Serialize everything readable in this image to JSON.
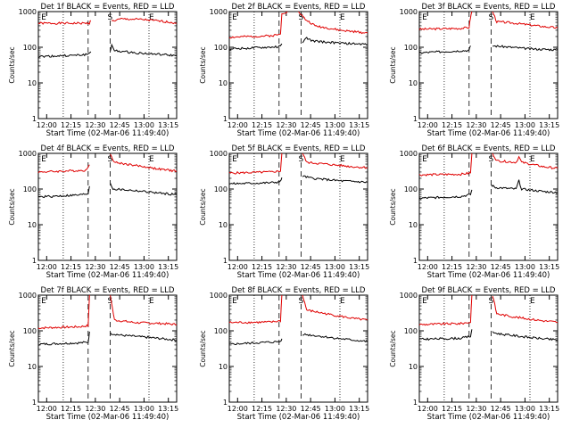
{
  "colors": {
    "events": "#000000",
    "lld": "#e00000",
    "axis": "#000000",
    "background": "#ffffff"
  },
  "chart_data": [
    {
      "type": "line",
      "title": "Det 1f BLACK = Events, RED = LLD",
      "ylabel": "Counts/sec",
      "xlabel": "Start Time (02-Mar-06 11:49:40)",
      "xticks": [
        "12:00",
        "12:15",
        "12:30",
        "12:45",
        "13:00",
        "13:15"
      ],
      "yticks": [
        "1",
        "10",
        "100",
        "1000"
      ],
      "yscale": "log",
      "ylim": [
        1,
        1000
      ],
      "markers": [
        "E",
        "S",
        "E"
      ],
      "series": [
        {
          "name": "LLD",
          "segments": [
            [
              [
                0,
                470
              ],
              [
                0.36,
                470
              ],
              [
                0.37,
                480
              ],
              [
                0.38,
                560
              ]
            ],
            [
              [
                0.53,
                540
              ],
              [
                0.6,
                620
              ],
              [
                0.75,
                600
              ],
              [
                0.92,
                520
              ],
              [
                1,
                480
              ]
            ]
          ]
        },
        {
          "name": "Events",
          "segments": [
            [
              [
                0,
                55
              ],
              [
                0.3,
                60
              ],
              [
                0.36,
                64
              ],
              [
                0.37,
                70
              ],
              [
                0.38,
                75
              ]
            ],
            [
              [
                0.52,
                82
              ],
              [
                0.53,
                110
              ],
              [
                0.55,
                80
              ],
              [
                0.7,
                70
              ],
              [
                0.9,
                62
              ],
              [
                1,
                58
              ]
            ]
          ]
        }
      ]
    },
    {
      "type": "line",
      "title": "Det 2f BLACK = Events, RED = LLD",
      "ylabel": "Counts/sec",
      "xlabel": "Start Time (02-Mar-06 11:49:40)",
      "xticks": [
        "12:00",
        "12:15",
        "12:30",
        "12:45",
        "13:00",
        "13:15"
      ],
      "yticks": [
        "1",
        "10",
        "100",
        "1000"
      ],
      "yscale": "log",
      "ylim": [
        1,
        1000
      ],
      "markers": [
        "E",
        "S",
        "E"
      ],
      "series": [
        {
          "name": "LLD",
          "segments": [
            [
              [
                0,
                190
              ],
              [
                0.3,
                210
              ],
              [
                0.37,
                230
              ],
              [
                0.38,
                900
              ],
              [
                0.42,
                1000
              ]
            ],
            [
              [
                0.5,
                1000
              ],
              [
                0.55,
                600
              ],
              [
                0.62,
                400
              ],
              [
                0.8,
                300
              ],
              [
                1,
                250
              ]
            ]
          ]
        },
        {
          "name": "Events",
          "segments": [
            [
              [
                0,
                90
              ],
              [
                0.3,
                100
              ],
              [
                0.37,
                105
              ],
              [
                0.38,
                125
              ]
            ],
            [
              [
                0.53,
                140
              ],
              [
                0.56,
                180
              ],
              [
                0.6,
                150
              ],
              [
                0.8,
                130
              ],
              [
                1,
                120
              ]
            ]
          ]
        }
      ]
    },
    {
      "type": "line",
      "title": "Det 3f BLACK = Events, RED = LLD",
      "ylabel": "Counts/sec",
      "xlabel": "Start Time (02-Mar-06 11:49:40)",
      "xticks": [
        "12:00",
        "12:15",
        "12:30",
        "12:45",
        "13:00",
        "13:15"
      ],
      "yticks": [
        "1",
        "10",
        "100",
        "1000"
      ],
      "yscale": "log",
      "ylim": [
        1,
        1000
      ],
      "markers": [
        "E",
        "S",
        "E"
      ],
      "series": [
        {
          "name": "LLD",
          "segments": [
            [
              [
                0,
                320
              ],
              [
                0.3,
                340
              ],
              [
                0.36,
                360
              ],
              [
                0.37,
                700
              ],
              [
                0.38,
                1000
              ]
            ],
            [
              [
                0.53,
                1000
              ],
              [
                0.56,
                520
              ],
              [
                0.7,
                470
              ],
              [
                0.9,
                380
              ],
              [
                1,
                350
              ]
            ]
          ]
        },
        {
          "name": "Events",
          "segments": [
            [
              [
                0,
                70
              ],
              [
                0.3,
                80
              ],
              [
                0.36,
                82
              ],
              [
                0.37,
                110
              ]
            ],
            [
              [
                0.53,
                110
              ],
              [
                0.6,
                105
              ],
              [
                0.8,
                90
              ],
              [
                1,
                85
              ]
            ]
          ]
        }
      ]
    },
    {
      "type": "line",
      "title": "Det 4f BLACK = Events, RED = LLD",
      "ylabel": "Counts/sec",
      "xlabel": "Start Time (02-Mar-06 11:49:40)",
      "xticks": [
        "12:00",
        "12:15",
        "12:30",
        "12:45",
        "13:00",
        "13:15"
      ],
      "yticks": [
        "1",
        "10",
        "100",
        "1000"
      ],
      "yscale": "log",
      "ylim": [
        1,
        1000
      ],
      "markers": [
        "E",
        "S",
        "E"
      ],
      "series": [
        {
          "name": "LLD",
          "segments": [
            [
              [
                0,
                300
              ],
              [
                0.3,
                330
              ],
              [
                0.35,
                340
              ],
              [
                0.37,
                480
              ]
            ],
            [
              [
                0.52,
                1000
              ],
              [
                0.55,
                560
              ],
              [
                0.7,
                460
              ],
              [
                0.9,
                350
              ],
              [
                1,
                320
              ]
            ]
          ]
        },
        {
          "name": "Events",
          "segments": [
            [
              [
                0,
                60
              ],
              [
                0.3,
                68
              ],
              [
                0.36,
                75
              ],
              [
                0.37,
                120
              ]
            ],
            [
              [
                0.52,
                150
              ],
              [
                0.54,
                100
              ],
              [
                0.7,
                90
              ],
              [
                0.9,
                75
              ],
              [
                1,
                70
              ]
            ]
          ]
        }
      ]
    },
    {
      "type": "line",
      "title": "Det 5f BLACK = Events, RED = LLD",
      "ylabel": "Counts/sec",
      "xlabel": "Start Time (02-Mar-06 11:49:40)",
      "xticks": [
        "12:00",
        "12:15",
        "12:30",
        "12:45",
        "13:00",
        "13:15"
      ],
      "yticks": [
        "1",
        "10",
        "100",
        "1000"
      ],
      "yscale": "log",
      "ylim": [
        1,
        1000
      ],
      "markers": [
        "E",
        "S",
        "E"
      ],
      "series": [
        {
          "name": "LLD",
          "segments": [
            [
              [
                0,
                280
              ],
              [
                0.3,
                300
              ],
              [
                0.37,
                320
              ],
              [
                0.38,
                1000
              ]
            ],
            [
              [
                0.53,
                1000
              ],
              [
                0.56,
                560
              ],
              [
                0.7,
                500
              ],
              [
                0.9,
                420
              ],
              [
                1,
                400
              ]
            ]
          ]
        },
        {
          "name": "Events",
          "segments": [
            [
              [
                0,
                140
              ],
              [
                0.3,
                150
              ],
              [
                0.37,
                160
              ],
              [
                0.38,
                210
              ]
            ],
            [
              [
                0.53,
                230
              ],
              [
                0.6,
                200
              ],
              [
                0.8,
                170
              ],
              [
                1,
                155
              ]
            ]
          ]
        }
      ]
    },
    {
      "type": "line",
      "title": "Det 6f BLACK = Events, RED = LLD",
      "ylabel": "Counts/sec",
      "xlabel": "Start Time (02-Mar-06 11:49:40)",
      "xticks": [
        "12:00",
        "12:15",
        "12:30",
        "12:45",
        "13:00",
        "13:15"
      ],
      "yticks": [
        "1",
        "10",
        "100",
        "1000"
      ],
      "yscale": "log",
      "ylim": [
        1,
        1000
      ],
      "markers": [
        "E",
        "S",
        "E"
      ],
      "series": [
        {
          "name": "LLD",
          "segments": [
            [
              [
                0,
                250
              ],
              [
                0.3,
                260
              ],
              [
                0.37,
                280
              ],
              [
                0.38,
                1000
              ]
            ],
            [
              [
                0.53,
                1000
              ],
              [
                0.56,
                620
              ],
              [
                0.7,
                560
              ],
              [
                0.72,
                800
              ],
              [
                0.74,
                560
              ],
              [
                0.9,
                420
              ],
              [
                1,
                380
              ]
            ]
          ]
        },
        {
          "name": "Events",
          "segments": [
            [
              [
                0,
                55
              ],
              [
                0.3,
                62
              ],
              [
                0.37,
                70
              ],
              [
                0.38,
                95
              ]
            ],
            [
              [
                0.52,
                130
              ],
              [
                0.55,
                110
              ],
              [
                0.7,
                100
              ],
              [
                0.72,
                170
              ],
              [
                0.74,
                100
              ],
              [
                0.9,
                85
              ],
              [
                1,
                80
              ]
            ]
          ]
        }
      ]
    },
    {
      "type": "line",
      "title": "Det 7f BLACK = Events, RED = LLD",
      "ylabel": "Counts/sec",
      "xlabel": "Start Time (02-Mar-06 11:49:40)",
      "xticks": [
        "12:00",
        "12:15",
        "12:30",
        "12:45",
        "13:00",
        "13:15"
      ],
      "yticks": [
        "1",
        "10",
        "100",
        "1000"
      ],
      "yscale": "log",
      "ylim": [
        1,
        1000
      ],
      "markers": [
        "E",
        "S",
        "E"
      ],
      "series": [
        {
          "name": "LLD",
          "segments": [
            [
              [
                0,
                120
              ],
              [
                0.3,
                130
              ],
              [
                0.36,
                140
              ],
              [
                0.37,
                1000
              ]
            ],
            [
              [
                0.52,
                1000
              ],
              [
                0.55,
                200
              ],
              [
                0.7,
                170
              ],
              [
                0.9,
                160
              ],
              [
                1,
                150
              ]
            ]
          ]
        },
        {
          "name": "Events",
          "segments": [
            [
              [
                0,
                42
              ],
              [
                0.3,
                46
              ],
              [
                0.36,
                48
              ],
              [
                0.37,
                95
              ]
            ],
            [
              [
                0.52,
                85
              ],
              [
                0.6,
                75
              ],
              [
                0.8,
                65
              ],
              [
                1,
                55
              ]
            ]
          ]
        }
      ]
    },
    {
      "type": "line",
      "title": "Det 8f BLACK = Events, RED = LLD",
      "ylabel": "Counts/sec",
      "xlabel": "Start Time (02-Mar-06 11:49:40)",
      "xticks": [
        "12:00",
        "12:15",
        "12:30",
        "12:45",
        "13:00",
        "13:15"
      ],
      "yticks": [
        "1",
        "10",
        "100",
        "1000"
      ],
      "yscale": "log",
      "ylim": [
        1,
        1000
      ],
      "markers": [
        "E",
        "S",
        "E"
      ],
      "series": [
        {
          "name": "LLD",
          "segments": [
            [
              [
                0,
                170
              ],
              [
                0.3,
                175
              ],
              [
                0.37,
                190
              ],
              [
                0.38,
                1000
              ]
            ],
            [
              [
                0.53,
                1000
              ],
              [
                0.56,
                380
              ],
              [
                0.7,
                300
              ],
              [
                0.9,
                220
              ],
              [
                1,
                200
              ]
            ]
          ]
        },
        {
          "name": "Events",
          "segments": [
            [
              [
                0,
                42
              ],
              [
                0.3,
                48
              ],
              [
                0.37,
                50
              ],
              [
                0.38,
                60
              ]
            ],
            [
              [
                0.53,
                80
              ],
              [
                0.6,
                75
              ],
              [
                0.8,
                60
              ],
              [
                1,
                50
              ]
            ]
          ]
        }
      ]
    },
    {
      "type": "line",
      "title": "Det 9f BLACK = Events, RED = LLD",
      "ylabel": "Counts/sec",
      "xlabel": "Start Time (02-Mar-06 11:49:40)",
      "xticks": [
        "12:00",
        "12:15",
        "12:30",
        "12:45",
        "13:00",
        "13:15"
      ],
      "yticks": [
        "1",
        "10",
        "100",
        "1000"
      ],
      "yscale": "log",
      "ylim": [
        1,
        1000
      ],
      "markers": [
        "E",
        "S",
        "E"
      ],
      "series": [
        {
          "name": "LLD",
          "segments": [
            [
              [
                0,
                150
              ],
              [
                0.3,
                160
              ],
              [
                0.37,
                175
              ],
              [
                0.38,
                1000
              ]
            ],
            [
              [
                0.53,
                1000
              ],
              [
                0.56,
                300
              ],
              [
                0.7,
                240
              ],
              [
                0.9,
                190
              ],
              [
                1,
                175
              ]
            ]
          ]
        },
        {
          "name": "Events",
          "segments": [
            [
              [
                0,
                58
              ],
              [
                0.3,
                62
              ],
              [
                0.37,
                70
              ],
              [
                0.38,
                110
              ]
            ],
            [
              [
                0.53,
                90
              ],
              [
                0.6,
                80
              ],
              [
                0.8,
                65
              ],
              [
                1,
                55
              ]
            ]
          ]
        }
      ]
    }
  ]
}
